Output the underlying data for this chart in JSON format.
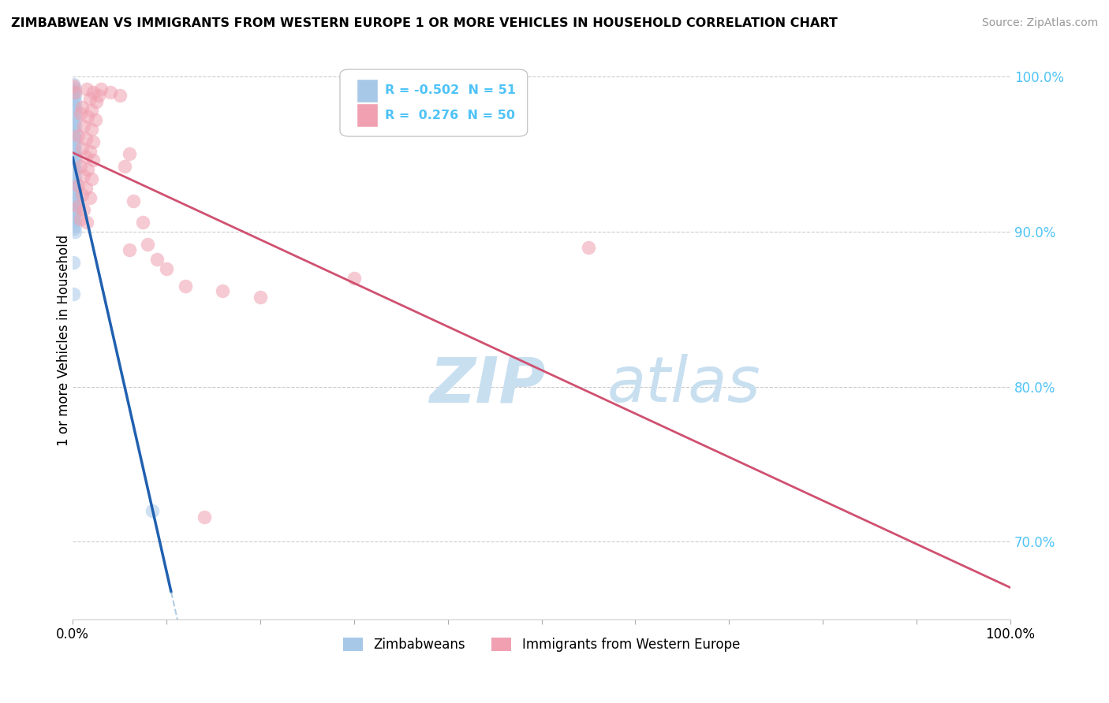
{
  "title": "ZIMBABWEAN VS IMMIGRANTS FROM WESTERN EUROPE 1 OR MORE VEHICLES IN HOUSEHOLD CORRELATION CHART",
  "source": "Source: ZipAtlas.com",
  "ylabel": "1 or more Vehicles in Household",
  "legend_blue_label": "Zimbabweans",
  "legend_pink_label": "Immigrants from Western Europe",
  "R_blue": -0.502,
  "N_blue": 51,
  "R_pink": 0.276,
  "N_pink": 50,
  "blue_color": "#a8c8e8",
  "blue_line_color": "#2060b0",
  "blue_line_dash_color": "#80aad0",
  "pink_color": "#f0a0b0",
  "pink_line_color": "#d05070",
  "watermark_zip": "ZIP",
  "watermark_atlas": "atlas",
  "watermark_color": "#c8dff0",
  "background_color": "#ffffff",
  "grid_color": "#cccccc",
  "right_tick_color": "#4fc3f7",
  "blue_dots": [
    [
      0.001,
      0.995
    ],
    [
      0.002,
      0.992
    ],
    [
      0.001,
      0.99
    ],
    [
      0.002,
      0.988
    ],
    [
      0.001,
      0.986
    ],
    [
      0.002,
      0.984
    ],
    [
      0.001,
      0.982
    ],
    [
      0.002,
      0.98
    ],
    [
      0.001,
      0.978
    ],
    [
      0.002,
      0.976
    ],
    [
      0.001,
      0.974
    ],
    [
      0.002,
      0.972
    ],
    [
      0.001,
      0.97
    ],
    [
      0.002,
      0.968
    ],
    [
      0.001,
      0.966
    ],
    [
      0.002,
      0.964
    ],
    [
      0.001,
      0.962
    ],
    [
      0.002,
      0.96
    ],
    [
      0.001,
      0.958
    ],
    [
      0.002,
      0.956
    ],
    [
      0.001,
      0.954
    ],
    [
      0.002,
      0.952
    ],
    [
      0.001,
      0.95
    ],
    [
      0.002,
      0.948
    ],
    [
      0.001,
      0.946
    ],
    [
      0.002,
      0.944
    ],
    [
      0.001,
      0.942
    ],
    [
      0.002,
      0.94
    ],
    [
      0.001,
      0.938
    ],
    [
      0.002,
      0.936
    ],
    [
      0.001,
      0.934
    ],
    [
      0.002,
      0.932
    ],
    [
      0.001,
      0.93
    ],
    [
      0.002,
      0.928
    ],
    [
      0.001,
      0.926
    ],
    [
      0.002,
      0.924
    ],
    [
      0.001,
      0.922
    ],
    [
      0.002,
      0.92
    ],
    [
      0.001,
      0.918
    ],
    [
      0.002,
      0.916
    ],
    [
      0.001,
      0.914
    ],
    [
      0.002,
      0.912
    ],
    [
      0.001,
      0.91
    ],
    [
      0.002,
      0.908
    ],
    [
      0.001,
      0.906
    ],
    [
      0.002,
      0.904
    ],
    [
      0.001,
      0.902
    ],
    [
      0.002,
      0.9
    ],
    [
      0.001,
      0.88
    ],
    [
      0.001,
      0.86
    ],
    [
      0.085,
      0.72
    ]
  ],
  "pink_dots": [
    [
      0.001,
      0.994
    ],
    [
      0.002,
      0.99
    ],
    [
      0.015,
      0.992
    ],
    [
      0.022,
      0.99
    ],
    [
      0.028,
      0.988
    ],
    [
      0.03,
      0.992
    ],
    [
      0.04,
      0.99
    ],
    [
      0.05,
      0.988
    ],
    [
      0.018,
      0.986
    ],
    [
      0.025,
      0.984
    ],
    [
      0.01,
      0.98
    ],
    [
      0.02,
      0.978
    ],
    [
      0.008,
      0.976
    ],
    [
      0.016,
      0.974
    ],
    [
      0.024,
      0.972
    ],
    [
      0.012,
      0.968
    ],
    [
      0.02,
      0.966
    ],
    [
      0.006,
      0.962
    ],
    [
      0.014,
      0.96
    ],
    [
      0.022,
      0.958
    ],
    [
      0.01,
      0.954
    ],
    [
      0.018,
      0.952
    ],
    [
      0.014,
      0.948
    ],
    [
      0.022,
      0.946
    ],
    [
      0.008,
      0.942
    ],
    [
      0.016,
      0.94
    ],
    [
      0.012,
      0.936
    ],
    [
      0.02,
      0.934
    ],
    [
      0.006,
      0.93
    ],
    [
      0.014,
      0.928
    ],
    [
      0.01,
      0.924
    ],
    [
      0.018,
      0.922
    ],
    [
      0.006,
      0.916
    ],
    [
      0.012,
      0.914
    ],
    [
      0.008,
      0.908
    ],
    [
      0.015,
      0.906
    ],
    [
      0.06,
      0.95
    ],
    [
      0.055,
      0.942
    ],
    [
      0.065,
      0.92
    ],
    [
      0.075,
      0.906
    ],
    [
      0.08,
      0.892
    ],
    [
      0.06,
      0.888
    ],
    [
      0.09,
      0.882
    ],
    [
      0.1,
      0.876
    ],
    [
      0.55,
      0.89
    ],
    [
      0.3,
      0.87
    ],
    [
      0.12,
      0.865
    ],
    [
      0.16,
      0.862
    ],
    [
      0.2,
      0.858
    ],
    [
      0.14,
      0.716
    ]
  ],
  "xlim": [
    0.0,
    1.0
  ],
  "ylim": [
    0.65,
    1.01
  ],
  "yticks_right": [
    1.0,
    0.9,
    0.8,
    0.7
  ],
  "ytick_right_labels": [
    "100.0%",
    "90.0%",
    "80.0%",
    "70.0%"
  ],
  "xticks": [
    0.0,
    0.1,
    0.2,
    0.3,
    0.4,
    0.5,
    0.6,
    0.7,
    0.8,
    0.9,
    1.0
  ],
  "xtick_labels_show": {
    "0.0": "0.0%",
    "1.0": "100.0%"
  },
  "blue_line_solid": [
    0.0,
    0.105
  ],
  "blue_line_dash": [
    0.105,
    0.3
  ],
  "pink_line_range": [
    0.0,
    1.0
  ]
}
